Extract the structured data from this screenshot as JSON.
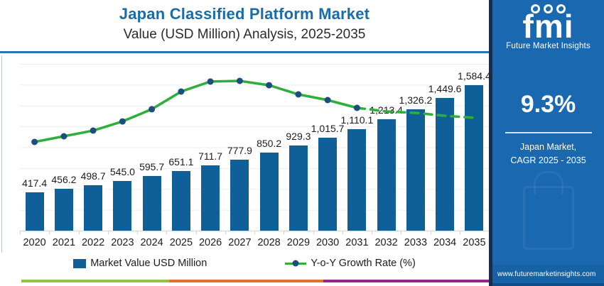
{
  "header": {
    "title": "Japan Classified Platform Market",
    "subtitle": "Value (USD Million) Analysis, 2025-2035"
  },
  "sidebar": {
    "logo_text": "fmi",
    "logo_subtext": "Future Market Insights",
    "cagr_value": "9.3%",
    "cagr_label_line1": "Japan Market,",
    "cagr_label_line2": "CAGR 2025 - 2035",
    "website": "www.futuremarketinsights.com",
    "colors": {
      "background": "#1a69b0",
      "left_strip": "#172c4e",
      "footer_band": "#1563a6"
    }
  },
  "legend": {
    "bar_label": "Market Value USD Million",
    "line_label": "Y-o-Y Growth Rate (%)"
  },
  "chart_data": {
    "type": "bar",
    "title": "Japan Classified Platform Market Value (USD Million) Analysis, 2025-2035",
    "categories": [
      "2020",
      "2021",
      "2022",
      "2023",
      "2024",
      "2025",
      "2026",
      "2027",
      "2028",
      "2029",
      "2030",
      "2031",
      "2032",
      "2033",
      "2034",
      "2035"
    ],
    "series": [
      {
        "name": "Market Value USD Million",
        "type": "bar",
        "color": "#0f5f99",
        "values": [
          417.4,
          456.2,
          498.7,
          545.0,
          595.7,
          651.1,
          711.7,
          777.9,
          850.2,
          929.3,
          1015.7,
          1110.1,
          1213.4,
          1326.2,
          1449.6,
          1584.4
        ]
      },
      {
        "name": "Y-o-Y Growth Rate (%)",
        "type": "line",
        "color": "#2daf3a",
        "marker_color": "#1d4e7e",
        "relative_heights": [
          0.532,
          0.566,
          0.6,
          0.655,
          0.728,
          0.834,
          0.894,
          0.898,
          0.872,
          0.817,
          0.783,
          0.736,
          0.715,
          0.706,
          0.689,
          0.677
        ],
        "solid_until_index": 11,
        "values_are_visual_estimates": true
      }
    ],
    "ylim": [
      0,
      1820
    ],
    "xlabel": "",
    "ylabel": "",
    "grid": "horizontal",
    "legend_position": "bottom",
    "data_labels": true,
    "bottom_strip_colors": [
      "#8dc63f",
      "#e8712a",
      "#93278f"
    ]
  }
}
